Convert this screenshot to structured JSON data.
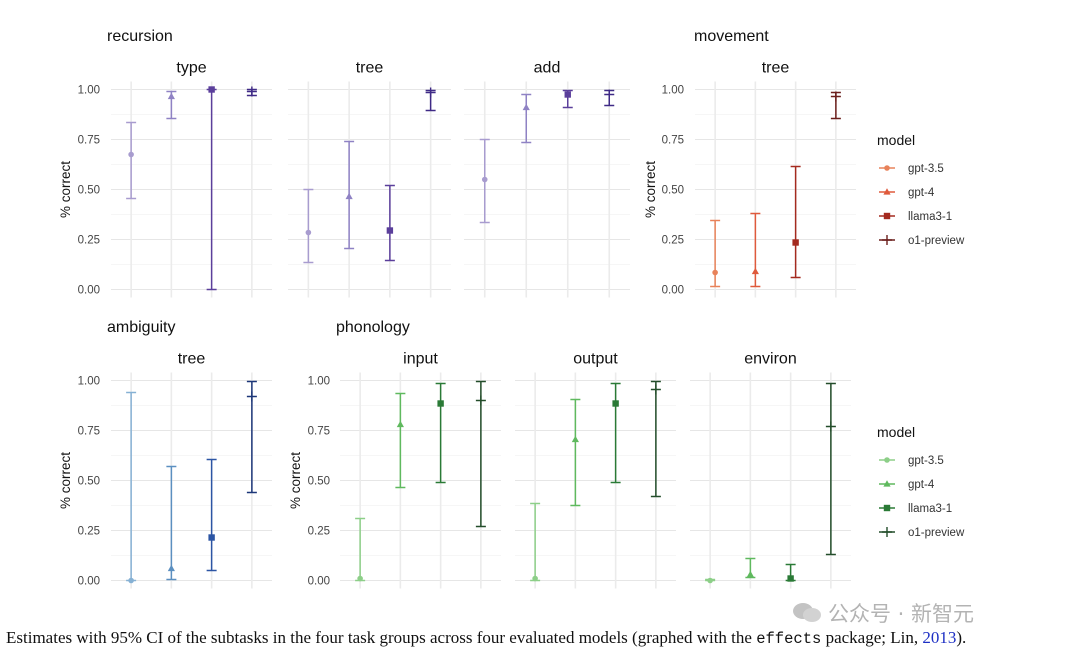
{
  "chart_data": {
    "type": "scatter",
    "ylabel": "% correct",
    "ylim": [
      0,
      1
    ],
    "yticks": [
      "0.00",
      "0.25",
      "0.50",
      "0.75",
      "1.00"
    ],
    "grid": true,
    "legend_placement": "right",
    "models": [
      "gpt-3.5",
      "gpt-4",
      "llama3-1",
      "o1-preview"
    ],
    "palettes": {
      "purple": [
        "#a89ccf",
        "#8f82c4",
        "#5b3f9b",
        "#3f2a86"
      ],
      "red": [
        "#e8825a",
        "#df5a3c",
        "#a42a1f",
        "#6b1f1c"
      ],
      "blue": [
        "#86b1d4",
        "#5b8fc0",
        "#2c55a4",
        "#1c3678"
      ],
      "green": [
        "#8dcf88",
        "#5fb95e",
        "#2a7a36",
        "#234d2a"
      ]
    },
    "groups": [
      {
        "name": "recursion",
        "palette": "purple",
        "panels": [
          {
            "title": "type",
            "points": [
              {
                "model": "gpt-3.5",
                "y": 0.675,
                "lo": 0.455,
                "hi": 0.835
              },
              {
                "model": "gpt-4",
                "y": 0.965,
                "lo": 0.855,
                "hi": 0.99
              },
              {
                "model": "llama3-1",
                "y": 1.0,
                "lo": 0.0,
                "hi": 1.0
              },
              {
                "model": "o1-preview",
                "y": 0.99,
                "lo": 0.97,
                "hi": 1.0
              }
            ]
          },
          {
            "title": "tree",
            "points": [
              {
                "model": "gpt-3.5",
                "y": 0.285,
                "lo": 0.135,
                "hi": 0.5
              },
              {
                "model": "gpt-4",
                "y": 0.465,
                "lo": 0.205,
                "hi": 0.74
              },
              {
                "model": "llama3-1",
                "y": 0.295,
                "lo": 0.145,
                "hi": 0.52
              },
              {
                "model": "o1-preview",
                "y": 0.985,
                "lo": 0.895,
                "hi": 0.995
              }
            ]
          },
          {
            "title": "add",
            "points": [
              {
                "model": "gpt-3.5",
                "y": 0.55,
                "lo": 0.335,
                "hi": 0.75
              },
              {
                "model": "gpt-4",
                "y": 0.91,
                "lo": 0.735,
                "hi": 0.975
              },
              {
                "model": "llama3-1",
                "y": 0.975,
                "lo": 0.91,
                "hi": 0.995
              },
              {
                "model": "o1-preview",
                "y": 0.975,
                "lo": 0.92,
                "hi": 0.995
              }
            ]
          }
        ]
      },
      {
        "name": "movement",
        "palette": "red",
        "panels": [
          {
            "title": "tree",
            "points": [
              {
                "model": "gpt-3.5",
                "y": 0.085,
                "lo": 0.015,
                "hi": 0.345
              },
              {
                "model": "gpt-4",
                "y": 0.09,
                "lo": 0.015,
                "hi": 0.38
              },
              {
                "model": "llama3-1",
                "y": 0.235,
                "lo": 0.06,
                "hi": 0.615
              },
              {
                "model": "o1-preview",
                "y": 0.965,
                "lo": 0.855,
                "hi": 0.985
              }
            ]
          }
        ]
      },
      {
        "name": "ambiguity",
        "palette": "blue",
        "panels": [
          {
            "title": "tree",
            "points": [
              {
                "model": "gpt-3.5",
                "y": 0.0,
                "lo": 0.0,
                "hi": 0.94
              },
              {
                "model": "gpt-4",
                "y": 0.06,
                "lo": 0.005,
                "hi": 0.57
              },
              {
                "model": "llama3-1",
                "y": 0.215,
                "lo": 0.05,
                "hi": 0.605
              },
              {
                "model": "o1-preview",
                "y": 0.92,
                "lo": 0.44,
                "hi": 0.995
              }
            ]
          }
        ]
      },
      {
        "name": "phonology",
        "palette": "green",
        "panels": [
          {
            "title": "input",
            "points": [
              {
                "model": "gpt-3.5",
                "y": 0.01,
                "lo": 0.0,
                "hi": 0.31
              },
              {
                "model": "gpt-4",
                "y": 0.78,
                "lo": 0.465,
                "hi": 0.935
              },
              {
                "model": "llama3-1",
                "y": 0.885,
                "lo": 0.49,
                "hi": 0.985
              },
              {
                "model": "o1-preview",
                "y": 0.9,
                "lo": 0.27,
                "hi": 0.995
              }
            ]
          },
          {
            "title": "output",
            "points": [
              {
                "model": "gpt-3.5",
                "y": 0.01,
                "lo": 0.0,
                "hi": 0.385
              },
              {
                "model": "gpt-4",
                "y": 0.705,
                "lo": 0.375,
                "hi": 0.905
              },
              {
                "model": "llama3-1",
                "y": 0.885,
                "lo": 0.49,
                "hi": 0.985
              },
              {
                "model": "o1-preview",
                "y": 0.955,
                "lo": 0.42,
                "hi": 0.995
              }
            ]
          },
          {
            "title": "environ",
            "points": [
              {
                "model": "gpt-3.5",
                "y": 0.0,
                "lo": 0.0,
                "hi": 0.005
              },
              {
                "model": "gpt-4",
                "y": 0.03,
                "lo": 0.015,
                "hi": 0.11
              },
              {
                "model": "llama3-1",
                "y": 0.01,
                "lo": 0.0,
                "hi": 0.08
              },
              {
                "model": "o1-preview",
                "y": 0.77,
                "lo": 0.13,
                "hi": 0.985
              }
            ]
          }
        ]
      }
    ],
    "legends": [
      {
        "title": "model",
        "palette": "red"
      },
      {
        "title": "model",
        "palette": "green"
      }
    ]
  },
  "caption": {
    "text_before": "Estimates with 95% CI of the subtasks in the four task groups across four evaluated models (graphed with the ",
    "code": "effects",
    "text_middle": " package; Lin, ",
    "year": "2013",
    "text_after": ")."
  },
  "watermark": {
    "text": "公众号 · 新智元"
  }
}
